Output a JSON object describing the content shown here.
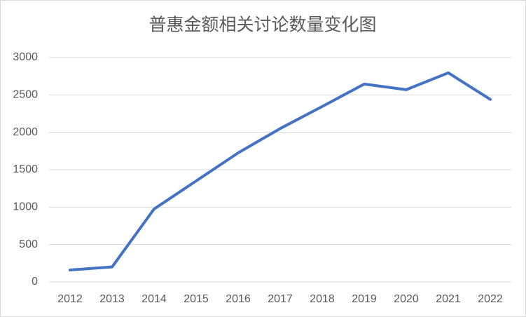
{
  "chart_data": {
    "type": "line",
    "title": "普惠金额相关讨论数量变化图",
    "categories": [
      "2012",
      "2013",
      "2014",
      "2015",
      "2016",
      "2017",
      "2018",
      "2019",
      "2020",
      "2021",
      "2022"
    ],
    "values": [
      160,
      200,
      975,
      1350,
      1725,
      2050,
      2345,
      2645,
      2570,
      2795,
      2440
    ],
    "color": "#4472c4",
    "ylim": [
      0,
      3000
    ],
    "yticks": [
      0,
      500,
      1000,
      1500,
      2000,
      2500,
      3000
    ],
    "grid": true
  }
}
